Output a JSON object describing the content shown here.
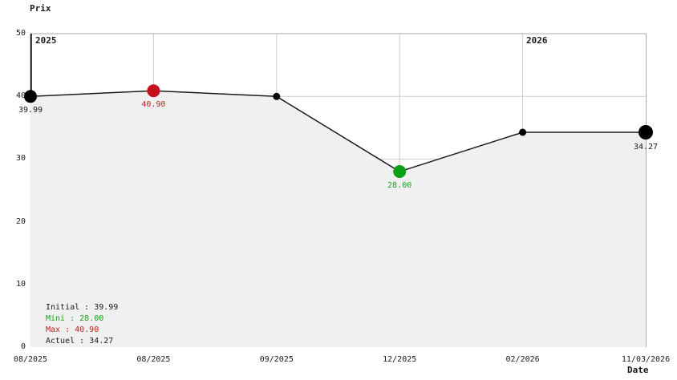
{
  "title": "Prix",
  "x_axis_title": "Date",
  "year_labels": [
    "2025",
    "2026"
  ],
  "y_ticks": [
    "50",
    "40",
    "30",
    "20",
    "10",
    "0"
  ],
  "x_ticks": [
    "08/2025",
    "08/2025",
    "09/2025",
    "12/2025",
    "02/2026",
    "11/03/2026"
  ],
  "legend": {
    "initial": "Initial : 39.99",
    "mini": "Mini : 28.00",
    "max": "Max : 40.90",
    "actuel": "Actuel : 34.27"
  },
  "colors": {
    "line": "#1a1a1a",
    "fill": "#f0f0f0",
    "grid": "#cccccc",
    "border": "#aaaaaa",
    "axis": "#111111",
    "point_black": "#000000",
    "max_point": "#c3101c",
    "min_point": "#0ca114",
    "max_text": "#c02020",
    "min_text": "#1f9d1f"
  },
  "chart_data": {
    "type": "line",
    "title": "Prix",
    "xlabel": "Date",
    "ylabel": "Prix",
    "ylim": [
      0,
      50
    ],
    "grid": true,
    "legend_position": "bottom-left",
    "x": [
      "08/2025",
      "08/2025",
      "09/2025",
      "12/2025",
      "02/2026",
      "11/03/2026"
    ],
    "values": [
      39.99,
      40.9,
      39.99,
      28.0,
      34.27,
      34.27
    ],
    "point_labels": [
      "39.99",
      "40.90",
      "",
      "28.00",
      "",
      "34.27"
    ],
    "point_types": [
      "initial",
      "max",
      "normal",
      "min",
      "normal",
      "current"
    ],
    "annotations": [
      "2025",
      "2026"
    ],
    "legend_entries": [
      "Initial : 39.99",
      "Mini : 28.00",
      "Max : 40.90",
      "Actuel : 34.27"
    ]
  }
}
